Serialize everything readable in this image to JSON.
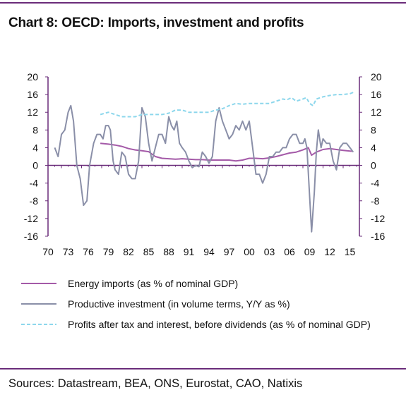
{
  "title": "Chart 8: OECD: Imports, investment and profits",
  "source": "Sources: Datastream, BEA, ONS, Eurostat, CAO, Natixis",
  "colors": {
    "rule": "#6a2c7a",
    "energy": "#a45aa8",
    "investment": "#8a8fa8",
    "profits": "#8dd7ec",
    "axis": "#6a2c7a"
  },
  "chart_data": {
    "type": "line",
    "title": "Chart 8: OECD: Imports, investment and profits",
    "xlim": [
      1970,
      2016
    ],
    "ylim": [
      -16,
      20
    ],
    "x_tick_labels": [
      "70",
      "73",
      "76",
      "79",
      "82",
      "85",
      "88",
      "91",
      "94",
      "97",
      "00",
      "03",
      "06",
      "09",
      "12",
      "15"
    ],
    "y_tick_labels": [
      "20",
      "16",
      "12",
      "8",
      "4",
      "0",
      "-4",
      "-8",
      "-12",
      "-16"
    ],
    "y_ticks": [
      20,
      16,
      12,
      8,
      4,
      0,
      -4,
      -8,
      -12,
      -16
    ],
    "grid": false,
    "legend_position": "bottom",
    "series": [
      {
        "name": "Energy imports (as % of nominal GDP)",
        "style": "solid",
        "x": [
          1977.8,
          1979,
          1980,
          1981,
          1982,
          1983,
          1984,
          1985,
          1986,
          1987,
          1988,
          1989,
          1990,
          1991,
          1992,
          1993,
          1994,
          1995,
          1996,
          1997,
          1998,
          1999,
          2000,
          2001,
          2002,
          2003,
          2004,
          2005,
          2006,
          2007,
          2008,
          2008.8,
          2009.3,
          2010,
          2011,
          2012,
          2013,
          2014,
          2015.3
        ],
        "y": [
          5,
          4.8,
          4.6,
          4.3,
          3.8,
          3.5,
          3.3,
          3.1,
          2.0,
          1.6,
          1.5,
          1.4,
          1.5,
          1.4,
          1.3,
          1.3,
          1.2,
          1.2,
          1.2,
          1.2,
          1.0,
          1.2,
          1.6,
          1.6,
          1.5,
          1.7,
          2.0,
          2.4,
          2.8,
          3.0,
          3.5,
          4.0,
          2.3,
          3.0,
          3.6,
          3.8,
          3.6,
          3.4,
          3.2
        ]
      },
      {
        "name": "Productive investment (in volume terms, Y/Y as %)",
        "style": "solid",
        "x": [
          1971,
          1971.5,
          1972,
          1972.5,
          1973,
          1973.4,
          1973.8,
          1974.3,
          1974.8,
          1975.3,
          1975.8,
          1976.2,
          1976.8,
          1977.3,
          1977.8,
          1978.2,
          1978.6,
          1979,
          1979.3,
          1979.7,
          1980,
          1980.5,
          1981,
          1981.5,
          1982,
          1982.5,
          1983,
          1983.5,
          1984,
          1984.5,
          1985,
          1985.5,
          1986,
          1986.5,
          1987,
          1987.5,
          1988,
          1988.4,
          1988.8,
          1989.2,
          1989.6,
          1990,
          1990.5,
          1991,
          1991.5,
          1992,
          1992.5,
          1993,
          1993.5,
          1994,
          1994.5,
          1995,
          1995.5,
          1996,
          1996.5,
          1997,
          1997.5,
          1998,
          1998.5,
          1999,
          1999.5,
          2000,
          2000.5,
          2001,
          2001.5,
          2002,
          2002.5,
          2003,
          2003.5,
          2004,
          2004.5,
          2005,
          2005.5,
          2006,
          2006.5,
          2007,
          2007.5,
          2008,
          2008.3,
          2008.6,
          2009,
          2009.3,
          2009.7,
          2010,
          2010.3,
          2010.7,
          2011,
          2011.5,
          2012,
          2012.5,
          2013,
          2013.5,
          2014,
          2014.5,
          2015,
          2015.5
        ],
        "y": [
          4,
          2,
          7,
          8,
          12,
          13.5,
          10,
          0,
          -3,
          -9,
          -8,
          0,
          5,
          7,
          7,
          6,
          9,
          9,
          8,
          1,
          -1,
          -2,
          3,
          2,
          -2,
          -3,
          -3,
          1,
          13,
          11,
          5,
          1,
          4,
          7,
          7,
          5,
          11,
          9,
          8,
          10,
          5,
          4,
          3,
          1,
          -0.5,
          0,
          -0.3,
          3,
          2,
          0.5,
          2,
          10,
          13,
          10,
          8,
          6,
          7,
          9,
          8,
          10,
          8,
          10,
          4,
          -2,
          -2,
          -4,
          -2,
          2,
          2,
          3,
          3,
          4,
          4,
          6,
          7,
          7,
          5,
          5,
          6,
          4,
          -7,
          -15,
          -6,
          3,
          8,
          4,
          6,
          5,
          5,
          1,
          -1,
          4,
          5,
          5,
          4,
          3
        ]
      },
      {
        "name": "Profits after tax and interest, before dividends (as % of nominal GDP)",
        "style": "dashed",
        "x": [
          1977.8,
          1979,
          1980,
          1981,
          1982,
          1983,
          1984,
          1985,
          1986,
          1987,
          1988,
          1989,
          1990,
          1991,
          1992,
          1993,
          1994,
          1995,
          1996,
          1997,
          1998,
          1999,
          2000,
          2001,
          2002,
          2003,
          2004,
          2005,
          2005.6,
          2006.3,
          2007,
          2008,
          2008.5,
          2009,
          2009.5,
          2010,
          2011,
          2012,
          2013,
          2014,
          2015,
          2015.5
        ],
        "y": [
          11.5,
          12,
          11.5,
          11,
          11,
          11,
          11.5,
          11.5,
          11.5,
          11.5,
          11.8,
          12.5,
          12.5,
          12,
          12,
          12,
          12,
          12.5,
          12.8,
          13.5,
          14,
          13.8,
          14,
          14,
          14,
          14,
          14.5,
          15,
          14.8,
          15.3,
          14.5,
          15,
          15.3,
          14,
          13.5,
          15,
          15.5,
          15.8,
          16,
          16,
          16.2,
          16.5
        ]
      }
    ]
  }
}
